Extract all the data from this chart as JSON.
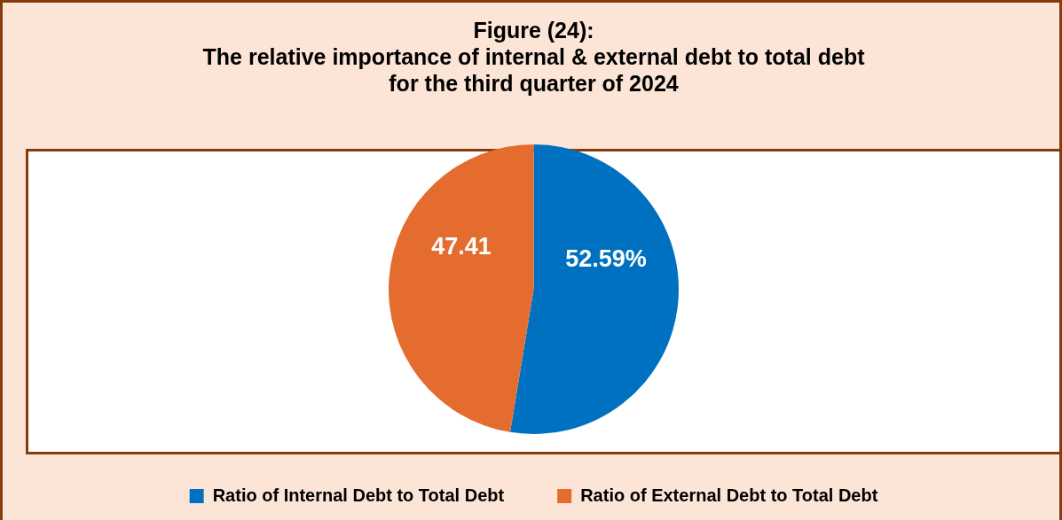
{
  "chart_data": {
    "type": "pie",
    "title": "Figure (24):\nThe relative importance of internal & external debt to total debt\nfor the third quarter of 2024",
    "categories": [
      "Ratio of Internal Debt to Total Debt",
      "Ratio of External Debt to Total Debt"
    ],
    "values": [
      52.59,
      47.41
    ],
    "colors": [
      "#0070c0",
      "#e46c2e"
    ],
    "value_labels": [
      "52.59%",
      "47.41"
    ],
    "legend": "bottom"
  }
}
